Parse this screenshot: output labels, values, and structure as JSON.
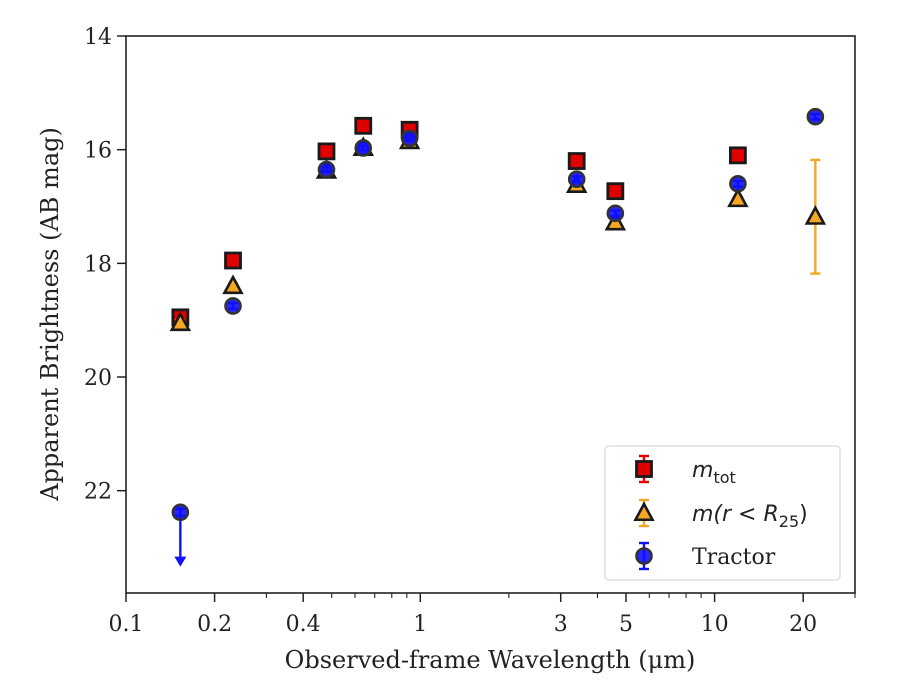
{
  "chart_data": {
    "type": "scatter",
    "xlabel": "Observed-frame Wavelength (μm)",
    "ylabel": "Apparent Brightness (AB mag)",
    "xscale": "log",
    "xlim": [
      0.1,
      30
    ],
    "ylim": [
      23.8,
      14
    ],
    "y_inverted": true,
    "x_ticks": [
      {
        "value": 0.1,
        "label": "0.1"
      },
      {
        "value": 0.2,
        "label": "0.2"
      },
      {
        "value": 0.4,
        "label": "0.4"
      },
      {
        "value": 1,
        "label": "1"
      },
      {
        "value": 3,
        "label": "3"
      },
      {
        "value": 5,
        "label": "5"
      },
      {
        "value": 10,
        "label": "10"
      },
      {
        "value": 20,
        "label": "20"
      }
    ],
    "y_ticks": [
      {
        "value": 14,
        "label": "14"
      },
      {
        "value": 16,
        "label": "16"
      },
      {
        "value": 18,
        "label": "18"
      },
      {
        "value": 20,
        "label": "20"
      },
      {
        "value": 22,
        "label": "22"
      }
    ],
    "legend_position": "lower-right",
    "legend": [
      {
        "key": "mtot",
        "main": "m",
        "sub": "tot",
        "rest": ""
      },
      {
        "key": "mr25",
        "main": "m(r < R",
        "sub": "25",
        "rest": ")"
      },
      {
        "key": "tractor",
        "main": "Tractor",
        "sub": "",
        "rest": ""
      }
    ],
    "series": [
      {
        "key": "mtot",
        "marker": "square",
        "face_color": "#e00000",
        "edge_color": "#1a1a1a",
        "error_color": "#e00000",
        "points": [
          {
            "x": 0.153,
            "y": 18.95,
            "err": 0.05
          },
          {
            "x": 0.231,
            "y": 17.95,
            "err": 0.05
          },
          {
            "x": 0.48,
            "y": 16.03,
            "err": 0.04
          },
          {
            "x": 0.64,
            "y": 15.58,
            "err": 0.04
          },
          {
            "x": 0.92,
            "y": 15.65,
            "err": 0.04
          },
          {
            "x": 3.4,
            "y": 16.2,
            "err": 0.04
          },
          {
            "x": 4.6,
            "y": 16.73,
            "err": 0.04
          },
          {
            "x": 12.0,
            "y": 16.1,
            "err": 0.04
          }
        ]
      },
      {
        "key": "mr25",
        "marker": "triangle",
        "face_color": "#f5a623",
        "edge_color": "#1a1a1a",
        "error_color": "#f5a623",
        "points": [
          {
            "x": 0.153,
            "y": 19.05,
            "err": 0.05
          },
          {
            "x": 0.231,
            "y": 18.4,
            "err": 0.05
          },
          {
            "x": 0.48,
            "y": 16.37,
            "err": 0.04
          },
          {
            "x": 0.64,
            "y": 15.97,
            "err": 0.04
          },
          {
            "x": 0.92,
            "y": 15.85,
            "err": 0.04
          },
          {
            "x": 3.4,
            "y": 16.62,
            "err": 0.04
          },
          {
            "x": 4.6,
            "y": 17.28,
            "err": 0.04
          },
          {
            "x": 12.0,
            "y": 16.87,
            "err": 0.04
          },
          {
            "x": 22.0,
            "y": 17.18,
            "err": 1.0
          }
        ]
      },
      {
        "key": "tractor",
        "marker": "circle",
        "face_color": "#1010ff",
        "edge_color": "#333333",
        "error_color": "#1010ff",
        "points": [
          {
            "x": 0.153,
            "y": 22.38,
            "err": 0.06,
            "upper_limit": true,
            "arrow_to": 23.3
          },
          {
            "x": 0.231,
            "y": 18.75,
            "err": 0.05
          },
          {
            "x": 0.48,
            "y": 16.35,
            "err": 0.04
          },
          {
            "x": 0.64,
            "y": 15.97,
            "err": 0.04
          },
          {
            "x": 0.92,
            "y": 15.8,
            "err": 0.04
          },
          {
            "x": 3.4,
            "y": 16.52,
            "err": 0.05
          },
          {
            "x": 4.6,
            "y": 17.12,
            "err": 0.05
          },
          {
            "x": 12.0,
            "y": 16.6,
            "err": 0.05
          },
          {
            "x": 22.0,
            "y": 15.42,
            "err": 0.05
          }
        ]
      }
    ]
  }
}
